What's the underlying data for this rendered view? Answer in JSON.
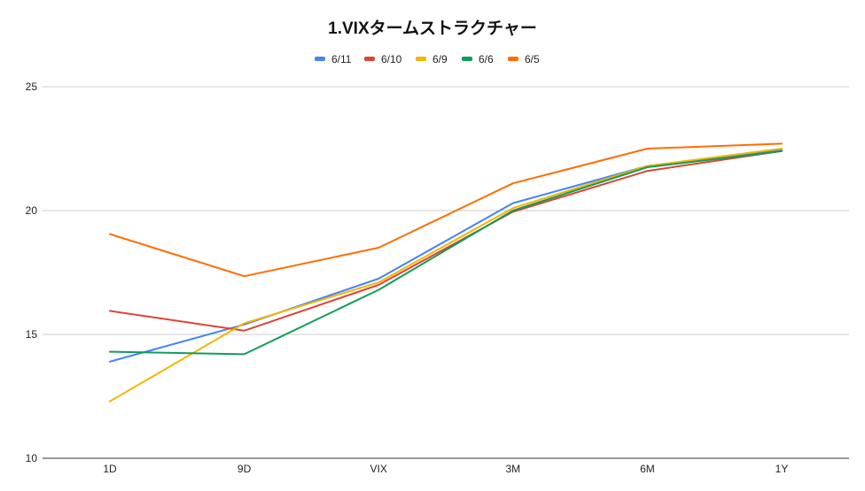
{
  "chart_data": {
    "type": "line",
    "title": "1.VIXタームストラクチャー",
    "xlabel": "",
    "ylabel": "",
    "categories": [
      "1D",
      "9D",
      "VIX",
      "3M",
      "6M",
      "1Y"
    ],
    "ylim": [
      10,
      25
    ],
    "yticks": [
      10,
      15,
      20,
      25
    ],
    "grid": true,
    "legend": "top",
    "series": [
      {
        "name": "6/11",
        "color": "#4285f4",
        "values": [
          13.9,
          15.4,
          17.25,
          20.3,
          21.8,
          22.45
        ]
      },
      {
        "name": "6/10",
        "color": "#db4437",
        "values": [
          15.95,
          15.15,
          17.0,
          19.95,
          21.6,
          22.4
        ]
      },
      {
        "name": "6/9",
        "color": "#f4b400",
        "values": [
          12.3,
          15.45,
          17.1,
          20.1,
          21.8,
          22.5
        ]
      },
      {
        "name": "6/6",
        "color": "#0f9d58",
        "values": [
          14.3,
          14.2,
          16.8,
          20.0,
          21.75,
          22.4
        ]
      },
      {
        "name": "6/5",
        "color": "#ff6d01",
        "values": [
          19.05,
          17.35,
          18.5,
          21.1,
          22.5,
          22.7
        ]
      }
    ]
  }
}
